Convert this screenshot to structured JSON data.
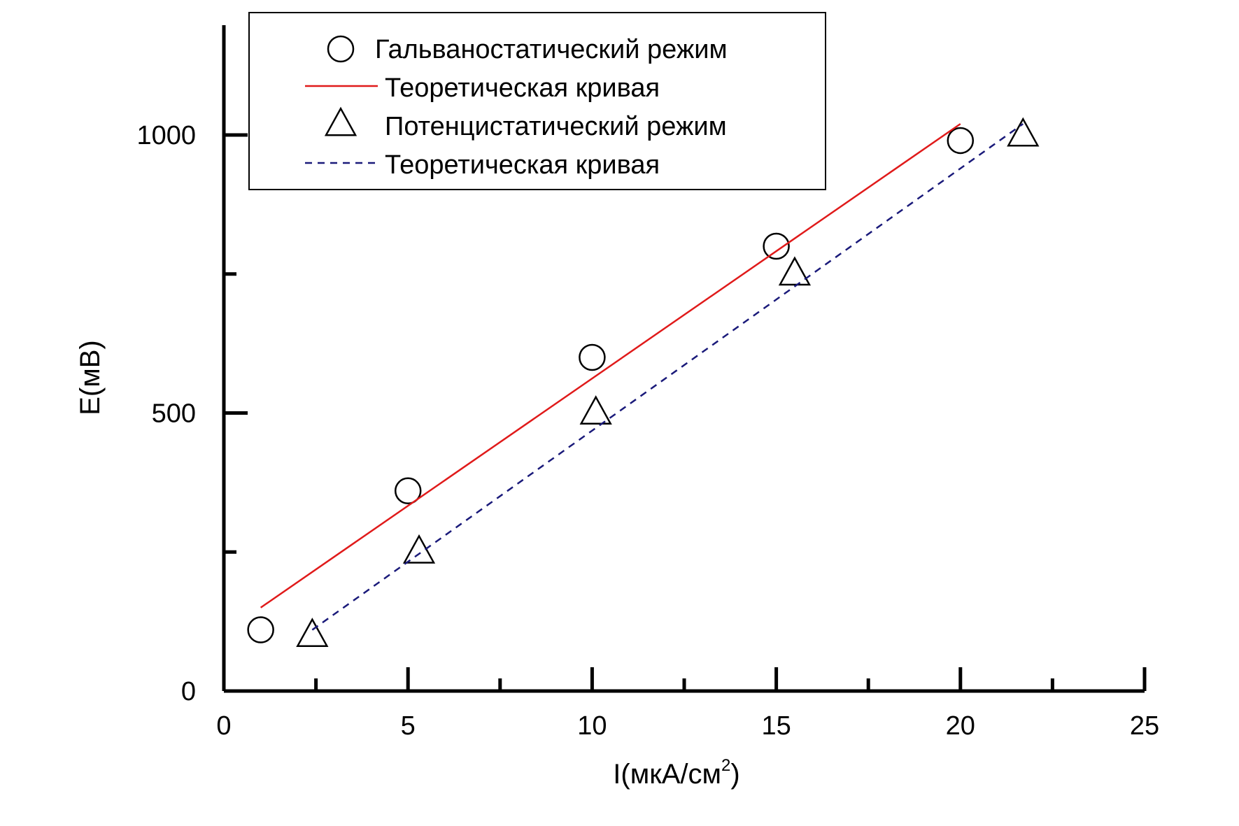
{
  "chart_data": {
    "type": "scatter",
    "xlabel": "I(мкА/см",
    "xlabel_sup": "2",
    "xlabel_close": ")",
    "ylabel": "E(мВ)",
    "xlim": [
      0,
      25
    ],
    "ylim": [
      0,
      1200
    ],
    "x_ticks": [
      0,
      5,
      10,
      15,
      20,
      25
    ],
    "x_minor_ticks": [
      2.5,
      7.5,
      12.5,
      17.5,
      22.5
    ],
    "x_tick_labels": [
      "0",
      "5",
      "10",
      "15",
      "20",
      "25"
    ],
    "y_ticks": [
      0,
      500,
      1000
    ],
    "y_minor_ticks": [
      250,
      750
    ],
    "y_tick_labels": [
      "0",
      "500",
      "1000"
    ],
    "grid": false,
    "legend_position": "top",
    "series": [
      {
        "name": "Гальваностатический режим",
        "kind": "points",
        "marker": "circle",
        "color": "#000000",
        "points": [
          [
            1,
            110
          ],
          [
            5,
            360
          ],
          [
            10,
            600
          ],
          [
            15,
            800
          ],
          [
            20,
            990
          ]
        ]
      },
      {
        "name": "Теоретическая кривая",
        "kind": "line",
        "style": "solid",
        "color": "#e01a1a",
        "points": [
          [
            1,
            150
          ],
          [
            20,
            1020
          ]
        ]
      },
      {
        "name": "Потенцистатический режим",
        "kind": "points",
        "marker": "triangle",
        "color": "#000000",
        "points": [
          [
            2.4,
            100
          ],
          [
            5.3,
            250
          ],
          [
            10.1,
            500
          ],
          [
            15.5,
            750
          ],
          [
            21.7,
            1000
          ]
        ]
      },
      {
        "name": "Теоретическая кривая",
        "kind": "line",
        "style": "dashed",
        "color": "#1a1a7a",
        "points": [
          [
            2.4,
            110
          ],
          [
            21.7,
            1020
          ]
        ]
      }
    ]
  }
}
